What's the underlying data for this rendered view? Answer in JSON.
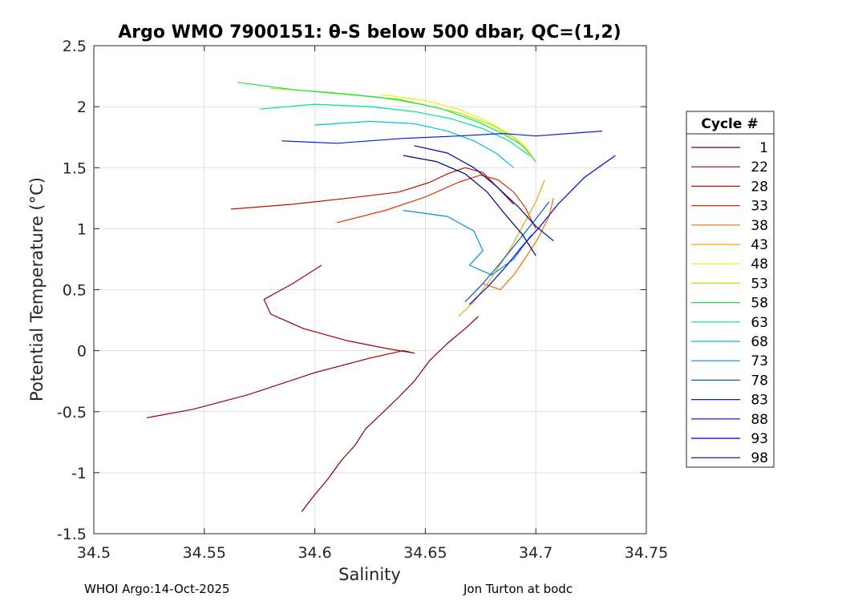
{
  "chart_data": {
    "type": "line",
    "title": "Argo WMO 7900151: θ-S below 500 dbar,  QC=(1,2)",
    "xlabel": "Salinity",
    "ylabel": "Potential Temperature (°C)",
    "xlim": [
      34.5,
      34.75
    ],
    "ylim": [
      -1.5,
      2.5
    ],
    "xticks": [
      34.5,
      34.55,
      34.6,
      34.65,
      34.7,
      34.75
    ],
    "yticks": [
      -1.5,
      -1,
      -0.5,
      0,
      0.5,
      1,
      1.5,
      2,
      2.5
    ],
    "grid": true,
    "legend": {
      "title": "Cycle #",
      "position": "right-outside"
    },
    "series": [
      {
        "name": "1",
        "color": "#800000",
        "x": [
          34.594,
          34.6,
          34.606,
          34.612,
          34.618,
          34.623,
          34.63,
          34.638,
          34.645,
          34.652,
          34.66,
          34.668,
          34.674
        ],
        "y": [
          -1.32,
          -1.18,
          -1.05,
          -0.9,
          -0.78,
          -0.64,
          -0.52,
          -0.38,
          -0.25,
          -0.08,
          0.06,
          0.18,
          0.28
        ]
      },
      {
        "name": "22",
        "color": "#a00000",
        "x": [
          34.524,
          34.545,
          34.57,
          34.6,
          34.625,
          34.64,
          34.645,
          34.632,
          34.615,
          34.595,
          34.58,
          34.577,
          34.59,
          34.603
        ],
        "y": [
          -0.55,
          -0.48,
          -0.36,
          -0.18,
          -0.06,
          0.0,
          -0.02,
          0.02,
          0.08,
          0.18,
          0.3,
          0.42,
          0.55,
          0.7
        ]
      },
      {
        "name": "28",
        "color": "#c01000",
        "x": [
          34.562,
          34.59,
          34.615,
          34.638,
          34.652,
          34.66,
          34.668,
          34.676,
          34.682,
          34.69
        ],
        "y": [
          1.16,
          1.2,
          1.25,
          1.3,
          1.38,
          1.45,
          1.5,
          1.46,
          1.35,
          1.2
        ]
      },
      {
        "name": "33",
        "color": "#e03000",
        "x": [
          34.61,
          34.632,
          34.65,
          34.665,
          34.675,
          34.683,
          34.69,
          34.695,
          34.7
        ],
        "y": [
          1.05,
          1.15,
          1.26,
          1.38,
          1.44,
          1.4,
          1.3,
          1.18,
          1.0
        ]
      },
      {
        "name": "38",
        "color": "#f07000",
        "x": [
          34.676,
          34.684,
          34.69,
          34.696,
          34.701,
          34.706,
          34.708
        ],
        "y": [
          0.55,
          0.5,
          0.62,
          0.78,
          0.92,
          1.1,
          1.25
        ]
      },
      {
        "name": "43",
        "color": "#e0b000",
        "x": [
          34.665,
          34.672,
          34.68,
          34.688,
          34.694,
          34.7,
          34.704
        ],
        "y": [
          0.28,
          0.4,
          0.6,
          0.82,
          1.02,
          1.22,
          1.4
        ]
      },
      {
        "name": "48",
        "color": "#f0f000",
        "x": [
          34.63,
          34.65,
          34.665,
          34.678,
          34.688,
          34.695,
          34.7
        ],
        "y": [
          2.1,
          2.05,
          1.98,
          1.88,
          1.78,
          1.68,
          1.55
        ]
      },
      {
        "name": "53",
        "color": "#a0f000",
        "x": [
          34.58,
          34.605,
          34.628,
          34.648,
          34.665,
          34.68,
          34.69,
          34.697
        ],
        "y": [
          2.15,
          2.12,
          2.08,
          2.02,
          1.95,
          1.85,
          1.75,
          1.62
        ]
      },
      {
        "name": "58",
        "color": "#20e040",
        "x": [
          34.565,
          34.59,
          34.615,
          34.638,
          34.658,
          34.673,
          34.685,
          34.694,
          34.7
        ],
        "y": [
          2.2,
          2.14,
          2.1,
          2.06,
          1.98,
          1.88,
          1.78,
          1.68,
          1.55
        ]
      },
      {
        "name": "63",
        "color": "#00e0a0",
        "x": [
          34.575,
          34.6,
          34.625,
          34.645,
          34.662,
          34.676,
          34.688,
          34.697
        ],
        "y": [
          1.98,
          2.02,
          2.0,
          1.96,
          1.9,
          1.82,
          1.72,
          1.6
        ]
      },
      {
        "name": "68",
        "color": "#00c0e0",
        "x": [
          34.6,
          34.625,
          34.645,
          34.66,
          34.672,
          34.682,
          34.69
        ],
        "y": [
          1.85,
          1.88,
          1.86,
          1.8,
          1.72,
          1.62,
          1.5
        ]
      },
      {
        "name": "73",
        "color": "#0090e0",
        "x": [
          34.64,
          34.66,
          34.672,
          34.676,
          34.67,
          34.68,
          34.69,
          34.698
        ],
        "y": [
          1.15,
          1.1,
          0.98,
          0.82,
          0.7,
          0.62,
          0.75,
          0.95
        ]
      },
      {
        "name": "78",
        "color": "#0060c0",
        "x": [
          34.668,
          34.676,
          34.684,
          34.692,
          34.7,
          34.706
        ],
        "y": [
          0.4,
          0.55,
          0.72,
          0.9,
          1.08,
          1.22
        ]
      },
      {
        "name": "83",
        "color": "#0020e0",
        "x": [
          34.585,
          34.61,
          34.64,
          34.665,
          34.685,
          34.7,
          34.715,
          34.73
        ],
        "y": [
          1.72,
          1.7,
          1.74,
          1.76,
          1.78,
          1.76,
          1.78,
          1.8
        ]
      },
      {
        "name": "88",
        "color": "#0000f0",
        "x": [
          34.67,
          34.678,
          34.686,
          34.694,
          34.702,
          34.71,
          34.722,
          34.736
        ],
        "y": [
          0.38,
          0.52,
          0.68,
          0.86,
          1.02,
          1.2,
          1.42,
          1.6
        ]
      },
      {
        "name": "93",
        "color": "#0000b0",
        "x": [
          34.645,
          34.66,
          34.672,
          34.682,
          34.692,
          34.7,
          34.708
        ],
        "y": [
          1.68,
          1.62,
          1.5,
          1.35,
          1.18,
          1.02,
          0.9
        ]
      },
      {
        "name": "98",
        "color": "#000080",
        "x": [
          34.64,
          34.655,
          34.668,
          34.678,
          34.686,
          34.694,
          34.7
        ],
        "y": [
          1.6,
          1.55,
          1.45,
          1.3,
          1.12,
          0.95,
          0.78
        ]
      }
    ]
  },
  "footer": {
    "left": "WHOI Argo:14-Oct-2025",
    "right": "Jon Turton at bodc"
  }
}
